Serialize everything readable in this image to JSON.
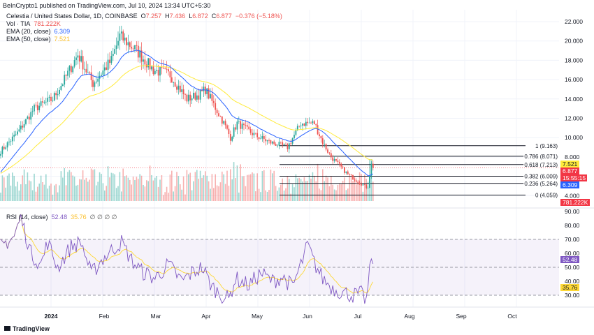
{
  "header": {
    "published": "BeInCrypto1 published on TradingView.com, Jul 10, 2024 13:34 UTC+5:30",
    "symbol": "Celestia / United States Dollar, 1D, COINBASE",
    "o_label": "O",
    "o": "7.257",
    "h_label": "H",
    "h": "7.436",
    "l_label": "L",
    "l": "6.872",
    "c_label": "C",
    "c": "6.877",
    "change": "−0.376 (−5.18%)",
    "vol_label": "Vol · TIA",
    "vol": "781.222K",
    "ema20_label": "EMA (20, close)",
    "ema20": "6.309",
    "ema50_label": "EMA (50, close)",
    "ema50": "7.521"
  },
  "rsi_header": {
    "label": "RSI (14, close)",
    "rsi": "52.48",
    "ma": "35.76",
    "extras": "∅ ∅ ∅ ∅"
  },
  "tags": {
    "ema50": "7.521",
    "price": "6.877",
    "countdown": "15:55:15",
    "ema20": "6.309",
    "volume": "781.222K",
    "rsi": "52.48",
    "rsi_ma": "35.76"
  },
  "footer": {
    "brand": "TradingView"
  },
  "colors": {
    "up": "#26a69a",
    "down": "#ef5350",
    "ema20": "#2962ff",
    "ema50": "#ffeb3b",
    "rsi": "#7e57c2",
    "rsi_ma": "#fdd835"
  },
  "chart_data": [
    {
      "type": "candlestick",
      "title": "Celestia / United States Dollar, 1D, COINBASE",
      "x_start": "2023-12-01",
      "x_end": "2024-07-10",
      "y_ticks": [
        "22.000",
        "20.000",
        "18.000",
        "16.000",
        "14.000",
        "12.000",
        "10.000",
        "8.000",
        "4.000"
      ],
      "ylim": [
        4,
        22
      ],
      "x_ticks": [
        "2024",
        "Feb",
        "Mar",
        "Apr",
        "May",
        "Jun",
        "Jul",
        "Aug",
        "Sep",
        "Oct"
      ],
      "close_anchors": [
        [
          0,
          8.6
        ],
        [
          10,
          10.5
        ],
        [
          20,
          13
        ],
        [
          31,
          14
        ],
        [
          38,
          16
        ],
        [
          46,
          18.6
        ],
        [
          55,
          15.6
        ],
        [
          66,
          18
        ],
        [
          71,
          20.5
        ],
        [
          81,
          19
        ],
        [
          91,
          17
        ],
        [
          101,
          16.5
        ],
        [
          111,
          14
        ],
        [
          119,
          14.5
        ],
        [
          122,
          15
        ],
        [
          133,
          11.5
        ],
        [
          137,
          10
        ],
        [
          141,
          11.5
        ],
        [
          152,
          10.2
        ],
        [
          161,
          9.5
        ],
        [
          171,
          9
        ],
        [
          179,
          11.5
        ],
        [
          187,
          11.5
        ],
        [
          192,
          9.5
        ],
        [
          197,
          8
        ],
        [
          207,
          6.2
        ],
        [
          217,
          5
        ],
        [
          219,
          4.8
        ],
        [
          221,
          7.3
        ],
        [
          222,
          6.877
        ]
      ],
      "fib_levels": [
        {
          "label": "1 (9.163)",
          "value": 9.163
        },
        {
          "label": "0.786 (8.071)",
          "value": 8.071
        },
        {
          "label": "0.618 (7.213)",
          "value": 7.213
        },
        {
          "label": "0.382 (6.009)",
          "value": 6.009
        },
        {
          "label": "0.236 (5.264)",
          "value": 5.264
        },
        {
          "label": "0 (4.059)",
          "value": 4.059
        }
      ]
    },
    {
      "type": "line",
      "title": "RSI (14, close)",
      "y_ticks": [
        "90.00",
        "80.00",
        "70.00",
        "60.00",
        "50.00",
        "40.00",
        "30.00"
      ],
      "ylim": [
        25,
        92
      ],
      "bands": [
        30,
        50,
        70
      ],
      "rsi_anchors": [
        [
          0,
          65
        ],
        [
          8,
          72
        ],
        [
          12,
          86
        ],
        [
          18,
          60
        ],
        [
          24,
          52
        ],
        [
          28,
          68
        ],
        [
          34,
          50
        ],
        [
          42,
          65
        ],
        [
          48,
          68
        ],
        [
          54,
          45
        ],
        [
          60,
          55
        ],
        [
          66,
          62
        ],
        [
          72,
          68
        ],
        [
          78,
          55
        ],
        [
          84,
          47
        ],
        [
          92,
          42
        ],
        [
          100,
          52
        ],
        [
          108,
          40
        ],
        [
          114,
          46
        ],
        [
          120,
          50
        ],
        [
          126,
          36
        ],
        [
          132,
          30
        ],
        [
          136,
          27
        ],
        [
          140,
          42
        ],
        [
          148,
          37
        ],
        [
          155,
          46
        ],
        [
          162,
          40
        ],
        [
          168,
          43
        ],
        [
          174,
          36
        ],
        [
          180,
          55
        ],
        [
          183,
          66
        ],
        [
          187,
          53
        ],
        [
          192,
          42
        ],
        [
          198,
          35
        ],
        [
          204,
          32
        ],
        [
          210,
          30
        ],
        [
          215,
          31
        ],
        [
          218,
          26
        ],
        [
          221,
          56
        ],
        [
          222,
          52.48
        ]
      ]
    }
  ]
}
